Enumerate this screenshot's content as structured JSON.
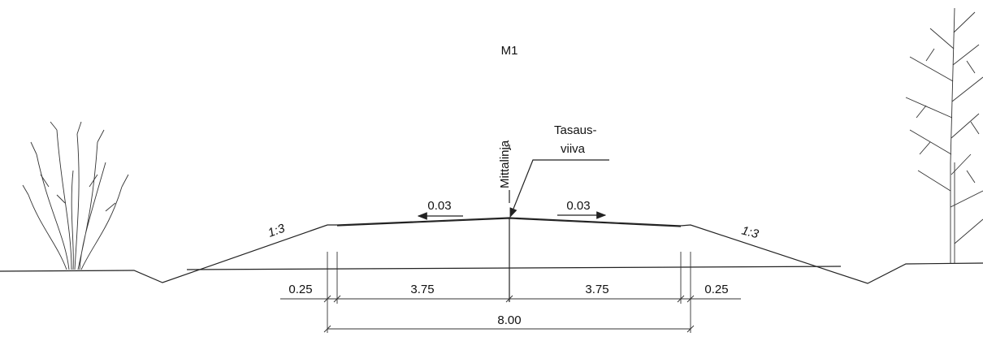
{
  "title": "M1",
  "centerline_label": "Mittalinja",
  "leveling_label": {
    "line1": "Tasaus-",
    "line2": "viiva"
  },
  "crossfall": {
    "left": "0.03",
    "right": "0.03"
  },
  "slopes": {
    "left": "1:3",
    "right": "1:3"
  },
  "dimensions": {
    "left_shoulder": "0.25",
    "left_lane": "3.75",
    "right_lane": "3.75",
    "right_shoulder": "0.25",
    "total": "8.00"
  }
}
